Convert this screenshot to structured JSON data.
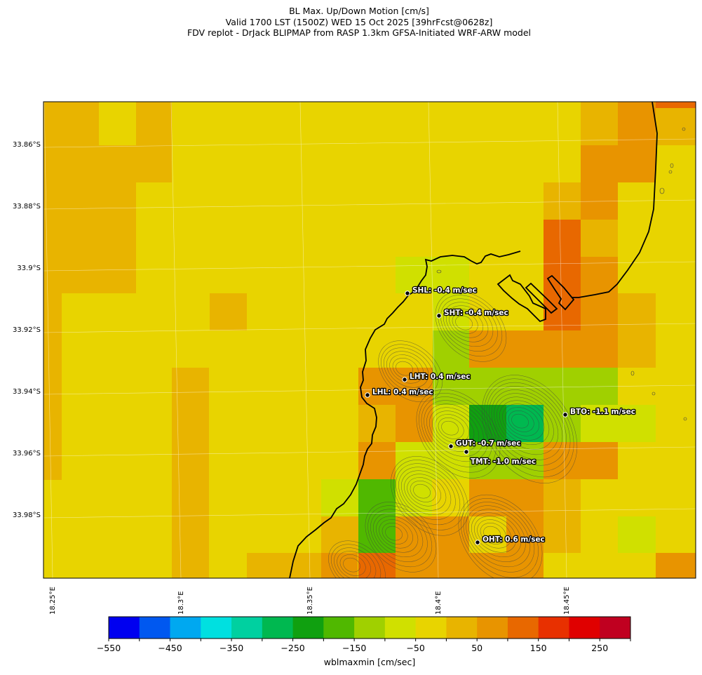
{
  "title": {
    "line1": "BL Max. Up/Down Motion [cm/s]",
    "line2": "Valid 1700 LST (1500Z) WED 15 Oct 2025 [39hrFcst@0628z]",
    "line3": "FDV replot - DrJack BLIPMAP from RASP 1.3km GFSA-Initiated WRF-ARW model"
  },
  "axes": {
    "lat_labels": [
      "33.86°S",
      "33.88°S",
      "33.9°S",
      "33.92°S",
      "33.94°S",
      "33.96°S",
      "33.98°S"
    ],
    "lon_labels": [
      "18.25°E",
      "18.3°E",
      "18.35°E",
      "18.4°E",
      "18.45°E"
    ]
  },
  "colorbar": {
    "title": "wblmaxmin [cm/sec]",
    "tick_labels": [
      "−550",
      "−450",
      "−350",
      "−250",
      "−150",
      "−50",
      "50",
      "150",
      "250"
    ],
    "colors": [
      "#0000f0",
      "#0058f0",
      "#00a8f0",
      "#00e0e0",
      "#00d0a0",
      "#00b850",
      "#10a010",
      "#50b800",
      "#a0d000",
      "#d0e000",
      "#e8d400",
      "#e8b400",
      "#e89400",
      "#e86800",
      "#e83000",
      "#e00000",
      "#c00020"
    ]
  },
  "stations": [
    {
      "label": "SHL: -0.4 m/sec"
    },
    {
      "label": "SHT: -0.4 m/sec"
    },
    {
      "label": "LHT: 0.4 m/sec"
    },
    {
      "label": "LHL: 0.4 m/sec"
    },
    {
      "label": "BTO: -1.1 m/sec"
    },
    {
      "label": "GUT: -0.7 m/sec"
    },
    {
      "label": "TMT: -1.0 m/sec"
    },
    {
      "label": "OHT: 0.6 m/sec"
    }
  ]
}
